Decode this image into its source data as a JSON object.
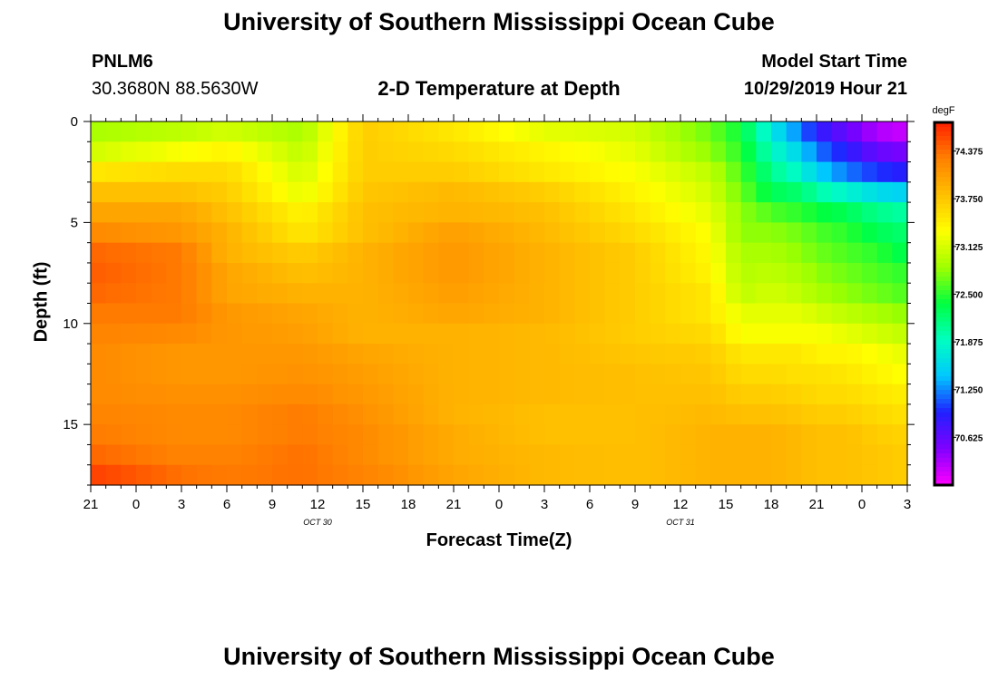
{
  "header": {
    "title": "University of Southern Mississippi Ocean Cube",
    "station": "PNLM6",
    "coords": "30.3680N 88.5630W",
    "plot_title": "2-D Temperature at Depth",
    "model_start_label": "Model Start Time",
    "model_start_value": "10/29/2019 Hour 21"
  },
  "footer": {
    "title": "University of Southern Mississippi Ocean Cube"
  },
  "colors": {
    "scale": [
      "#ff00ff",
      "#8000ff",
      "#2020ff",
      "#00c8ff",
      "#00ffc0",
      "#00ff40",
      "#a0ff00",
      "#ffff00",
      "#ffc000",
      "#ff8000",
      "#ff2000"
    ]
  },
  "chart_data": {
    "type": "heatmap",
    "xlabel": "Forecast Time(Z)",
    "ylabel": "Depth (ft)",
    "x_tick_labels": [
      "21",
      "0",
      "3",
      "6",
      "9",
      "12",
      "15",
      "18",
      "21",
      "0",
      "3",
      "6",
      "9",
      "12",
      "15",
      "18",
      "21",
      "0",
      "3"
    ],
    "date_labels": [
      {
        "label": "OCT 30",
        "at_hour": 15
      },
      {
        "label": "OCT 31",
        "at_hour": 39
      }
    ],
    "y_ticks": [
      0,
      5,
      10,
      15
    ],
    "ylim": [
      0,
      18
    ],
    "y_reversed": true,
    "x_hours_range": [
      0,
      54
    ],
    "colorbar": {
      "unit": "degF",
      "range": [
        70.0,
        74.75
      ],
      "tick_labels": [
        "74.375",
        "73.750",
        "73.125",
        "72.500",
        "71.875",
        "71.250",
        "70.625"
      ]
    },
    "depth_levels_ft": [
      0.5,
      1.5,
      2.5,
      3.5,
      4.5,
      5.5,
      6.5,
      7.5,
      8.5,
      9.5,
      10.5,
      11.5,
      12.5,
      13.5,
      14.5,
      15.5,
      16.5,
      17.5
    ],
    "anchor_hours": [
      0,
      6,
      9,
      14,
      18,
      24,
      30,
      36,
      41,
      43,
      45,
      47,
      48,
      50,
      52,
      54
    ],
    "temperature_rows": [
      [
        72.9,
        73.0,
        73.1,
        72.9,
        73.7,
        73.5,
        73.2,
        73.1,
        72.7,
        72.4,
        71.7,
        71.2,
        70.9,
        70.6,
        70.3,
        70.2
      ],
      [
        73.1,
        73.3,
        73.4,
        73.0,
        73.7,
        73.6,
        73.4,
        73.2,
        72.8,
        72.5,
        71.9,
        71.5,
        71.2,
        70.9,
        70.6,
        70.5
      ],
      [
        73.5,
        73.6,
        73.6,
        73.1,
        73.7,
        73.7,
        73.5,
        73.3,
        73.0,
        72.6,
        72.1,
        71.8,
        71.5,
        71.2,
        71.0,
        70.9
      ],
      [
        73.8,
        73.8,
        73.7,
        73.2,
        73.75,
        73.85,
        73.7,
        73.4,
        73.1,
        72.7,
        72.3,
        72.2,
        72.0,
        71.8,
        71.6,
        71.5
      ],
      [
        74.0,
        74.0,
        73.8,
        73.4,
        73.8,
        73.9,
        73.8,
        73.5,
        73.2,
        72.8,
        72.6,
        72.5,
        72.4,
        72.3,
        72.1,
        72.0
      ],
      [
        74.2,
        74.1,
        73.9,
        73.5,
        73.8,
        74.05,
        73.85,
        73.6,
        73.3,
        72.8,
        72.8,
        72.7,
        72.6,
        72.5,
        72.3,
        72.2
      ],
      [
        74.4,
        74.3,
        73.9,
        73.7,
        73.9,
        74.1,
        73.9,
        73.7,
        73.35,
        72.9,
        72.9,
        72.8,
        72.7,
        72.6,
        72.5,
        72.3
      ],
      [
        74.45,
        74.3,
        74.0,
        73.8,
        73.9,
        74.1,
        73.9,
        73.7,
        73.4,
        72.95,
        73.0,
        72.9,
        72.8,
        72.7,
        72.6,
        72.5
      ],
      [
        74.4,
        74.3,
        74.0,
        73.9,
        73.9,
        74.05,
        73.9,
        73.7,
        73.5,
        73.0,
        73.1,
        73.0,
        72.9,
        72.8,
        72.7,
        72.6
      ],
      [
        74.3,
        74.3,
        74.1,
        74.0,
        73.9,
        74.0,
        73.9,
        73.7,
        73.5,
        73.2,
        73.2,
        73.2,
        73.1,
        73.0,
        72.9,
        72.8
      ],
      [
        74.25,
        74.2,
        74.1,
        74.05,
        73.9,
        73.9,
        73.85,
        73.7,
        73.6,
        73.3,
        73.3,
        73.3,
        73.3,
        73.2,
        73.1,
        73.0
      ],
      [
        74.2,
        74.1,
        74.1,
        74.1,
        74.0,
        73.9,
        73.85,
        73.75,
        73.7,
        73.5,
        73.5,
        73.5,
        73.4,
        73.4,
        73.3,
        73.2
      ],
      [
        74.2,
        74.1,
        74.1,
        74.15,
        74.05,
        73.9,
        73.85,
        73.8,
        73.75,
        73.6,
        73.6,
        73.55,
        73.55,
        73.5,
        73.4,
        73.3
      ],
      [
        74.2,
        74.15,
        74.15,
        74.2,
        74.1,
        73.9,
        73.85,
        73.8,
        73.8,
        73.7,
        73.7,
        73.65,
        73.6,
        73.6,
        73.5,
        73.45
      ],
      [
        74.25,
        74.2,
        74.2,
        74.3,
        74.15,
        73.9,
        73.8,
        73.8,
        73.85,
        73.8,
        73.8,
        73.75,
        73.7,
        73.7,
        73.6,
        73.55
      ],
      [
        74.3,
        74.2,
        74.2,
        74.3,
        74.2,
        73.95,
        73.8,
        73.8,
        73.9,
        73.9,
        73.9,
        73.85,
        73.8,
        73.8,
        73.7,
        73.65
      ],
      [
        74.4,
        74.25,
        74.25,
        74.35,
        74.2,
        73.95,
        73.85,
        73.8,
        73.9,
        73.9,
        73.9,
        73.85,
        73.8,
        73.8,
        73.75,
        73.7
      ],
      [
        74.6,
        74.35,
        74.3,
        74.35,
        74.25,
        74.0,
        73.85,
        73.8,
        73.9,
        73.9,
        73.9,
        73.85,
        73.8,
        73.8,
        73.75,
        73.7
      ]
    ]
  }
}
